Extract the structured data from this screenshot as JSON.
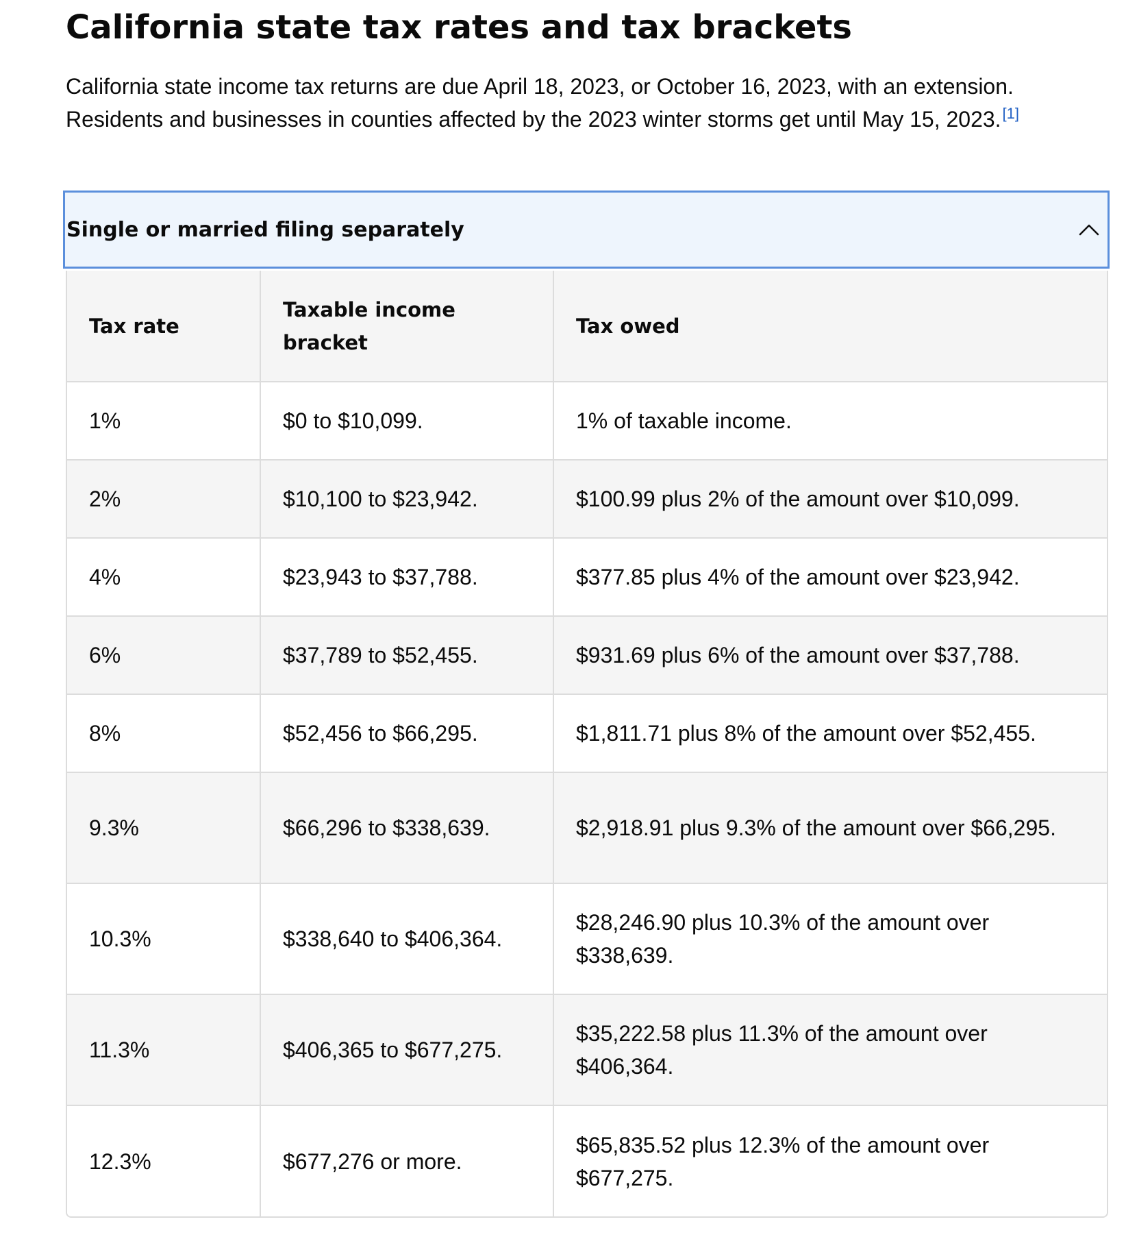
{
  "heading": "California state tax rates and tax brackets",
  "intro": {
    "text": "California state income tax returns are due April 18, 2023, or October 16, 2023, with an extension. Residents and businesses in counties affected by the 2023 winter storms get until May 15, 2023.",
    "footnote": "[1]"
  },
  "accordion": {
    "title": "Single or married filing separately",
    "icon": "chevron-up-icon",
    "expanded": true
  },
  "table": {
    "headers": [
      "Tax rate",
      "Taxable income bracket",
      "Tax owed"
    ],
    "rows": [
      {
        "rate": "1%",
        "bracket": "$0 to $10,099.",
        "owed": "1% of taxable income."
      },
      {
        "rate": "2%",
        "bracket": "$10,100 to $23,942.",
        "owed": "$100.99 plus 2% of the amount over $10,099."
      },
      {
        "rate": "4%",
        "bracket": "$23,943 to $37,788.",
        "owed": "$377.85 plus 4% of the amount over $23,942."
      },
      {
        "rate": "6%",
        "bracket": "$37,789 to $52,455.",
        "owed": "$931.69 plus 6% of the amount over $37,788."
      },
      {
        "rate": "8%",
        "bracket": "$52,456 to $66,295.",
        "owed": "$1,811.71 plus 8% of the amount over $52,455."
      },
      {
        "rate": "9.3%",
        "bracket": "$66,296 to $338,639.",
        "owed": "$2,918.91 plus 9.3% of the amount over $66,295."
      },
      {
        "rate": "10.3%",
        "bracket": "$338,640 to $406,364.",
        "owed": "$28,246.90 plus 10.3% of the amount over $338,639."
      },
      {
        "rate": "11.3%",
        "bracket": "$406,365 to $677,275.",
        "owed": "$35,222.58 plus 11.3% of the amount over $406,364."
      },
      {
        "rate": "12.3%",
        "bracket": "$677,276 or more.",
        "owed": "$65,835.52 plus 12.3% of the amount over $677,275."
      }
    ]
  },
  "colors": {
    "accordion_border": "#5b8fdc",
    "accordion_bg": "#eef5fd",
    "stripe": "#f5f5f5",
    "footnote_link": "#2160c4"
  }
}
